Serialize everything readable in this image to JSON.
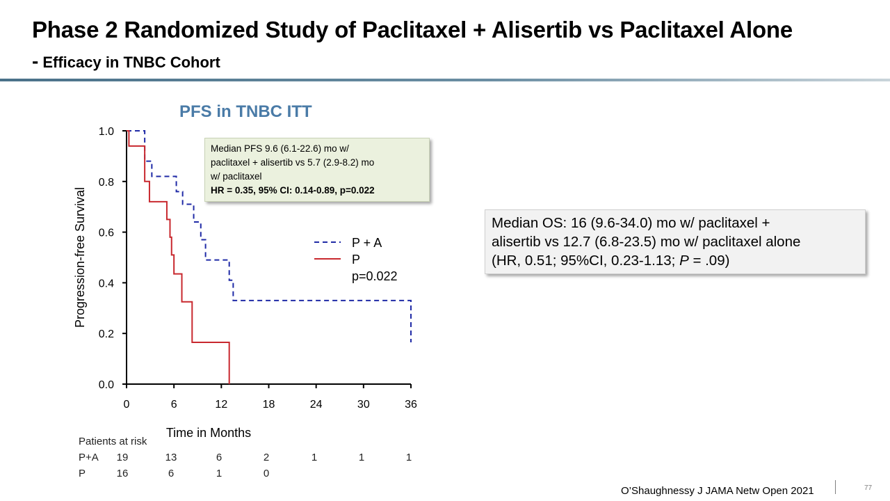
{
  "slide": {
    "title": "Phase 2 Randomized Study of Paclitaxel + Alisertib vs Paclitaxel Alone",
    "subtitle_dash": "-",
    "subtitle": "Efficacy in TNBC Cohort",
    "footer": "O’Shaughnessy J JAMA Netw Open 2021",
    "page_number": "77"
  },
  "chart_title": "PFS in TNBC ITT",
  "pfs_box": {
    "line1": "Median  PFS 9.6 (6.1-22.6)  mo w/",
    "line2": "paclitaxel  + alisertib  vs 5.7 (2.9-8.2)  mo",
    "line3": "w/ paclitaxel",
    "hr": "HR = 0.35, 95% CI: 0.14-0.89,  p=0.022"
  },
  "os_box": {
    "line1": "Median OS: 16 (9.6-34.0) mo w/ paclitaxel +",
    "line2": "alisertib vs 12.7 (6.8-23.5) mo w/ paclitaxel alone",
    "line3_pre": "(HR, 0.51; 95%CI, 0.23-1.13; ",
    "line3_p": "P",
    "line3_post": " = .09)"
  },
  "risk_table": {
    "header": "Patients at risk",
    "rows": [
      {
        "label": "P+A",
        "values": [
          "19",
          "13",
          "6",
          "2",
          "1",
          "1",
          "1"
        ]
      },
      {
        "label": "P",
        "values": [
          "16",
          "6",
          "1",
          "0"
        ]
      }
    ]
  },
  "chart_data": {
    "type": "line",
    "step": true,
    "title": "PFS in TNBC ITT",
    "xlabel": "Time in Months",
    "ylabel": "Progression-free Survival",
    "xlim": [
      0,
      36
    ],
    "ylim": [
      0,
      1
    ],
    "xticks": [
      0,
      6,
      12,
      18,
      24,
      30,
      36
    ],
    "yticks": [
      0.0,
      0.2,
      0.4,
      0.6,
      0.8,
      1.0
    ],
    "xtick_labels": [
      "0",
      "6",
      "12",
      "18",
      "24",
      "30",
      "36"
    ],
    "ytick_labels": [
      "0.0",
      "0.2",
      "0.4",
      "0.6",
      "0.8",
      "1.0"
    ],
    "grid": false,
    "legend_position": "right-middle",
    "annotation": "p=0.022",
    "series": [
      {
        "name": "P + A",
        "color": "#1f2aa6",
        "dash": true,
        "x": [
          0,
          2.0,
          2.3,
          3.2,
          5.9,
          6.3,
          7.1,
          8.1,
          8.5,
          9.4,
          10.0,
          12.5,
          13.0,
          13.5,
          22.6,
          36
        ],
        "y": [
          1.0,
          1.0,
          0.88,
          0.82,
          0.82,
          0.76,
          0.71,
          0.71,
          0.64,
          0.57,
          0.49,
          0.49,
          0.41,
          0.33,
          0.33,
          0.165
        ]
      },
      {
        "name": "P",
        "color": "#c8282e",
        "dash": false,
        "x": [
          0,
          0.3,
          2.0,
          2.3,
          2.9,
          4.8,
          5.1,
          5.5,
          5.7,
          6.0,
          7.0,
          8.3,
          13.0
        ],
        "y": [
          1.0,
          0.94,
          0.94,
          0.8,
          0.72,
          0.72,
          0.65,
          0.58,
          0.51,
          0.435,
          0.325,
          0.165,
          0.0
        ]
      }
    ]
  }
}
